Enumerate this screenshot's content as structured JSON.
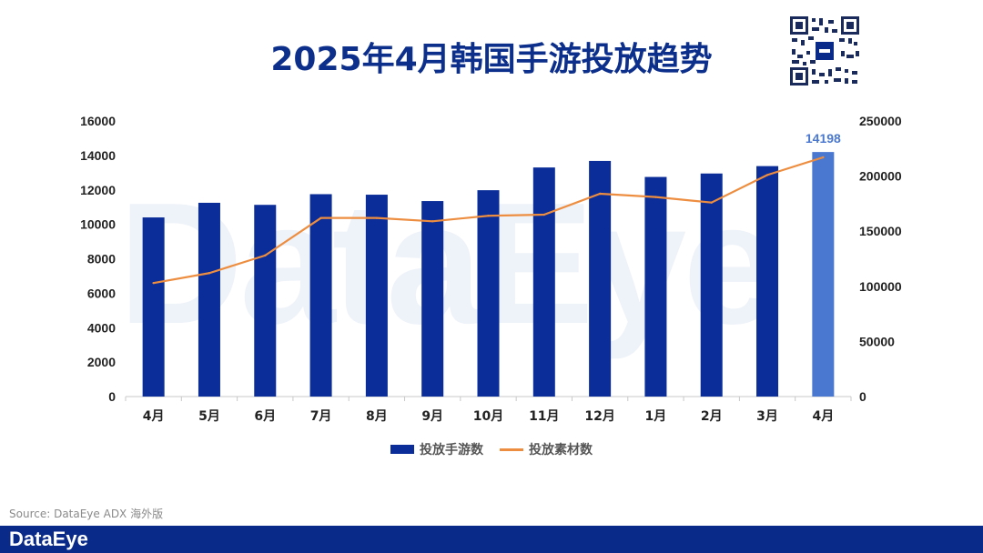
{
  "page": {
    "title": "2025年4月韩国手游投放趋势",
    "watermark": "DataEye",
    "source": "Source: DataEye ADX 海外版",
    "footer_logo": "DataEye",
    "colors": {
      "title": "#0d2f8c",
      "bar": "#0a2d99",
      "bar_highlight": "#4a78d0",
      "line": "#ed8d3f",
      "footer": "#0a2a8a"
    }
  },
  "chart_data": {
    "type": "bar",
    "categories": [
      "4月",
      "5月",
      "6月",
      "7月",
      "8月",
      "9月",
      "10月",
      "11月",
      "12月",
      "1月",
      "2月",
      "3月",
      "4月"
    ],
    "series": [
      {
        "name": "投放手游数",
        "type": "bar",
        "axis": "left",
        "values": [
          10400,
          11250,
          11130,
          11750,
          11720,
          11350,
          11980,
          13300,
          13680,
          12750,
          12950,
          13380,
          14198
        ]
      },
      {
        "name": "投放素材数",
        "type": "line",
        "axis": "right",
        "values": [
          103000,
          112000,
          128000,
          162000,
          162000,
          159000,
          164000,
          165000,
          184000,
          181000,
          176000,
          201000,
          217000
        ]
      }
    ],
    "data_labels": [
      {
        "category_index": 12,
        "text": "14198"
      }
    ],
    "y_left": {
      "min": 0,
      "max": 16000,
      "ticks": [
        "0",
        "2000",
        "4000",
        "6000",
        "8000",
        "10000",
        "12000",
        "14000",
        "16000"
      ]
    },
    "y_right": {
      "min": 0,
      "max": 250000,
      "ticks": [
        "0",
        "50000",
        "100000",
        "150000",
        "200000",
        "250000"
      ]
    },
    "grid": false,
    "legend": "bottom-center"
  }
}
